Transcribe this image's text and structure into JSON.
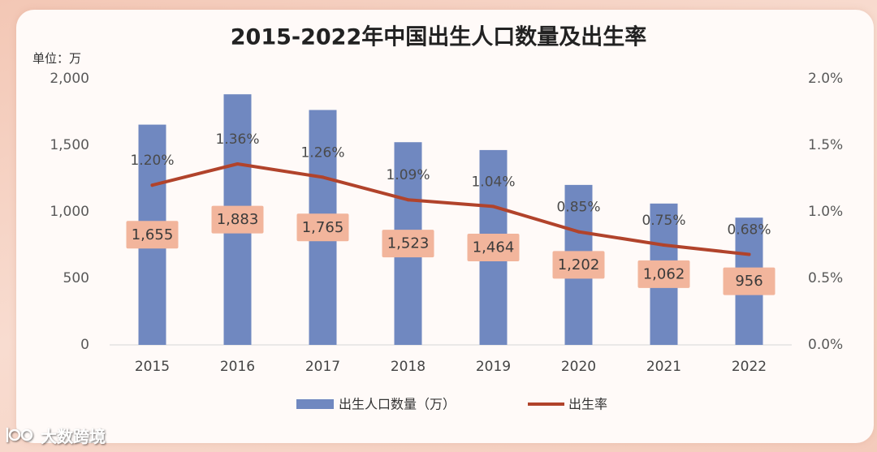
{
  "page": {
    "frame_color": "#f5cdbd",
    "card_color": "#fffaf8"
  },
  "chart_data": {
    "type": "bar",
    "title": "2015-2022年中国出生人口数量及出生率",
    "xlabel": "",
    "ylabel": "单位：万",
    "categories": [
      "2015",
      "2016",
      "2017",
      "2018",
      "2019",
      "2020",
      "2021",
      "2022"
    ],
    "series": [
      {
        "name": "出生人口数量（万）",
        "type": "bar",
        "color": "#7088c0",
        "label_box_color": "#f2b59c",
        "values": [
          1655,
          1883,
          1765,
          1523,
          1464,
          1202,
          1062,
          956
        ],
        "labels": [
          "1,655",
          "1,883",
          "1,765",
          "1,523",
          "1,464",
          "1,202",
          "1,062",
          "956"
        ]
      },
      {
        "name": "出生率",
        "type": "line",
        "color": "#b1432b",
        "values": [
          1.2,
          1.36,
          1.26,
          1.09,
          1.04,
          0.85,
          0.75,
          0.68
        ],
        "labels": [
          "1.20%",
          "1.36%",
          "1.26%",
          "1.09%",
          "1.04%",
          "0.85%",
          "0.75%",
          "0.68%"
        ]
      }
    ],
    "ylim": [
      0,
      2000
    ],
    "yticks": [
      0,
      500,
      1000,
      1500,
      2000
    ],
    "ytick_labels": [
      "0",
      "500",
      "1,000",
      "1,500",
      "2,000"
    ],
    "ylim_right": [
      0,
      2.0
    ],
    "yticks_right": [
      0,
      0.5,
      1.0,
      1.5,
      2.0
    ],
    "ytick_labels_right": [
      "0.0%",
      "0.5%",
      "1.0%",
      "1.5%",
      "2.0%"
    ],
    "grid": false,
    "legend_position": "bottom"
  },
  "watermark": {
    "text": "大数跨境"
  }
}
